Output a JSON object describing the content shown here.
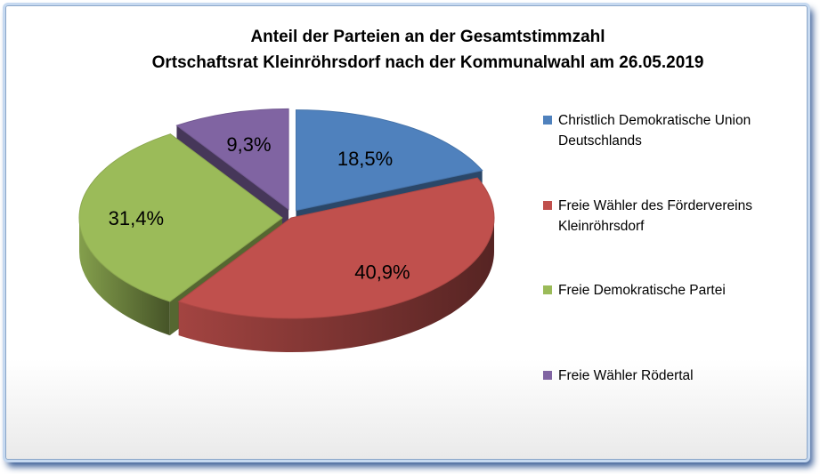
{
  "chart_data": {
    "type": "pie",
    "title_lines": [
      "Anteil der Parteien an der Gesamtstimmzahl",
      "Ortschaftsrat Kleinröhrsdorf nach der Kommunalwahl am 26.05.2019"
    ],
    "slices": [
      {
        "name": "Christlich Demokratische Union Deutschlands",
        "legend_lines": [
          "Christlich Demokratische Union",
          "Deutschlands"
        ],
        "value": 18.5,
        "label": "18,5%",
        "color": "#4f81bd",
        "exploded": true
      },
      {
        "name": "Freie Wähler des Fördervereins Kleinröhrsdorf",
        "legend_lines": [
          "Freie Wähler des Fördervereins",
          "Kleinröhrsdorf"
        ],
        "value": 40.9,
        "label": "40,9%",
        "color": "#c0504d",
        "exploded": false
      },
      {
        "name": "Freie Demokratische Partei",
        "legend_lines": [
          "Freie Demokratische Partei"
        ],
        "value": 31.4,
        "label": "31,4%",
        "color": "#9bbb59",
        "exploded": true
      },
      {
        "name": "Freie Wähler Rödertal",
        "legend_lines": [
          "Freie Wähler Rödertal"
        ],
        "value": 9.3,
        "label": "9,3%",
        "color": "#8064a2",
        "exploded": true
      }
    ],
    "style": "3d-exploded",
    "legend_position": "right"
  }
}
